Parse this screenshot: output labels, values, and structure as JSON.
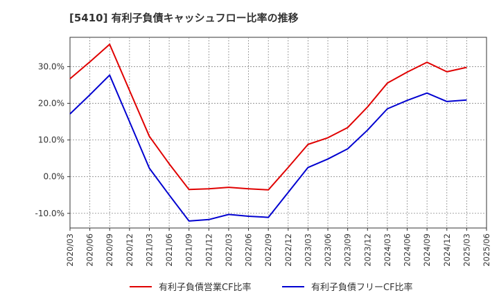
{
  "chart_data": {
    "type": "line",
    "title": "[5410]  有利子負債キャッシュフロー比率の推移",
    "xlabel": "",
    "ylabel": "",
    "x": [
      "2020/03",
      "2020/06",
      "2020/09",
      "2020/12",
      "2021/03",
      "2021/06",
      "2021/09",
      "2021/12",
      "2022/03",
      "2022/06",
      "2022/09",
      "2022/12",
      "2023/03",
      "2023/06",
      "2023/09",
      "2023/12",
      "2024/03",
      "2024/06",
      "2024/09",
      "2024/12",
      "2025/03",
      "2025/06"
    ],
    "ylim": [
      -14,
      38
    ],
    "yticks": [
      -10,
      0,
      10,
      20,
      30
    ],
    "ytick_labels": [
      "-10.0%",
      "0.0%",
      "10.0%",
      "20.0%",
      "30.0%"
    ],
    "grid": true,
    "legend_position": "bottom",
    "series": [
      {
        "name": "有利子負債営業CF比率",
        "color": "#e00000",
        "values": [
          26.7,
          31.3,
          36.1,
          23.5,
          11.0,
          3.5,
          -3.5,
          -3.3,
          -2.9,
          -3.3,
          -3.6,
          2.5,
          8.8,
          10.6,
          13.4,
          19.0,
          25.5,
          28.5,
          31.2,
          28.6,
          29.8,
          null
        ]
      },
      {
        "name": "有利子負債フリーCF比率",
        "color": "#0000d0",
        "values": [
          17.1,
          22.3,
          27.7,
          15.0,
          2.3,
          -5.0,
          -12.1,
          -11.7,
          -10.3,
          -10.8,
          -11.1,
          -4.3,
          2.5,
          4.8,
          7.6,
          12.7,
          18.5,
          20.8,
          22.8,
          20.5,
          20.9,
          null
        ]
      }
    ]
  }
}
